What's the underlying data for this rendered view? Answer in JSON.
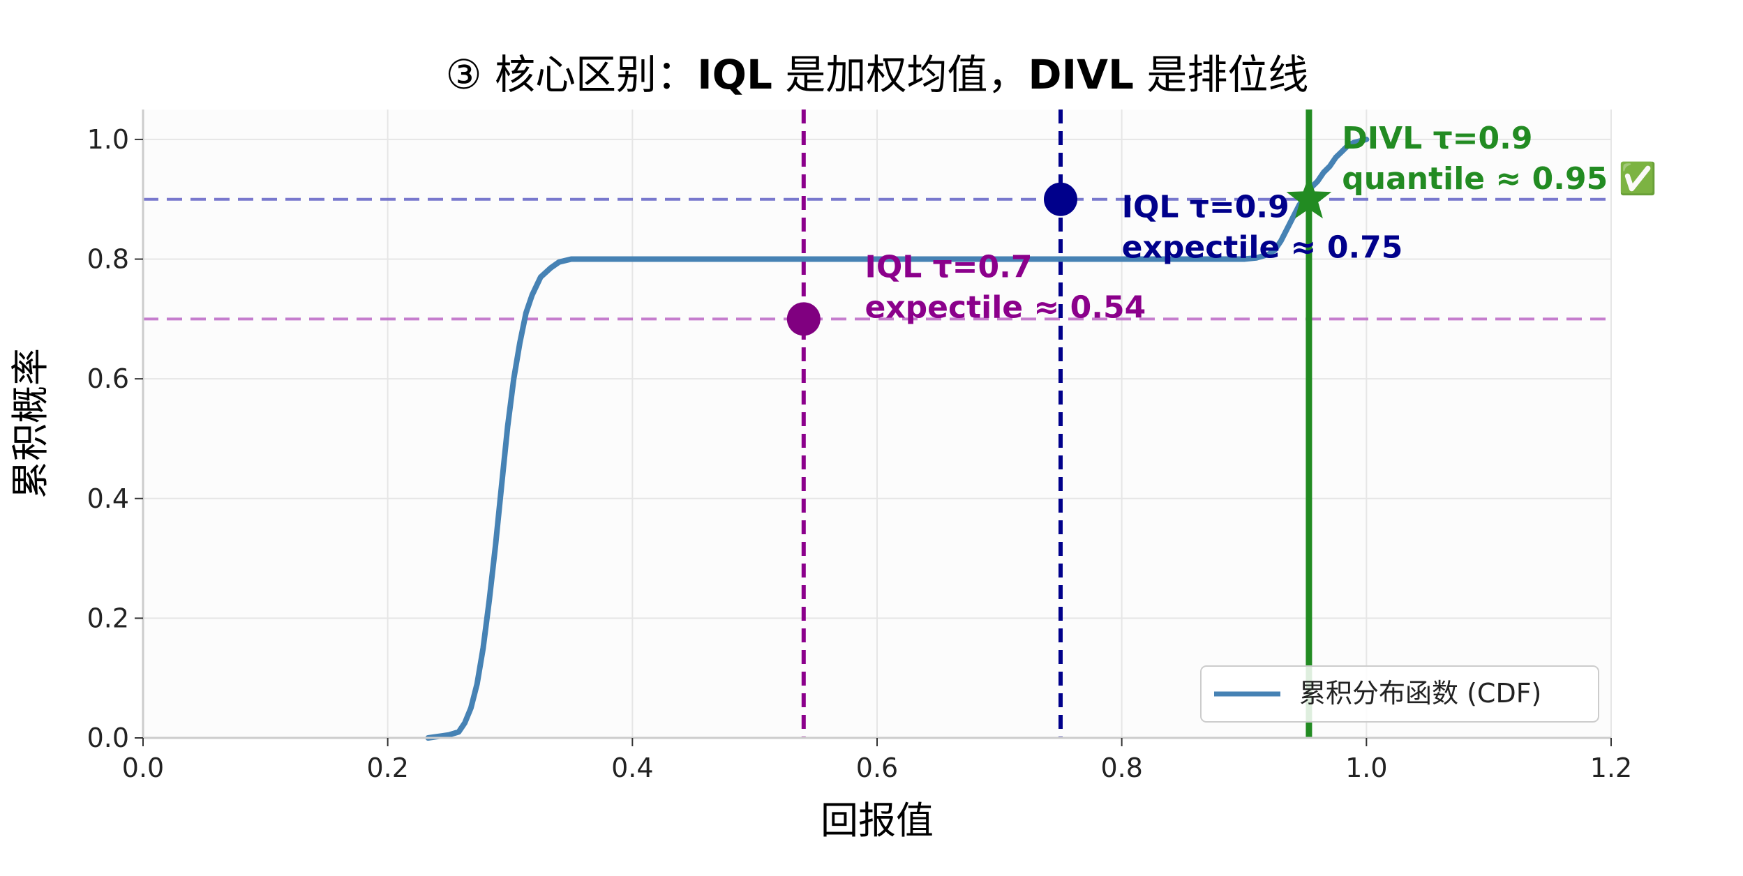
{
  "chart_data": {
    "type": "line",
    "title": "③ 核心区别：IQL 是加权均值，DIVL 是排位线",
    "title_parts": {
      "prefix": "③ 核心区别：",
      "bold1": "IQL",
      "mid": " 是加权均值，",
      "bold2": "DIVL",
      "suffix": " 是排位线"
    },
    "xlabel": "回报值",
    "ylabel": "累积概率",
    "xlim": [
      0.0,
      1.2
    ],
    "ylim": [
      0.0,
      1.05
    ],
    "xticks": [
      0.0,
      0.2,
      0.4,
      0.6,
      0.8,
      1.0,
      1.2
    ],
    "xtick_labels": [
      "0.0",
      "0.2",
      "0.4",
      "0.6",
      "0.8",
      "1.0",
      "1.2"
    ],
    "yticks": [
      0.0,
      0.2,
      0.4,
      0.6,
      0.8,
      1.0
    ],
    "ytick_labels": [
      "0.0",
      "0.2",
      "0.4",
      "0.6",
      "0.8",
      "1.0"
    ],
    "grid": true,
    "legend": {
      "position": "lower-right",
      "entries": [
        "累积分布函数 (CDF)"
      ]
    },
    "series": [
      {
        "name": "累积分布函数 (CDF)",
        "color": "#4682b4",
        "x": [
          0.233,
          0.25,
          0.258,
          0.263,
          0.268,
          0.273,
          0.278,
          0.283,
          0.288,
          0.293,
          0.298,
          0.303,
          0.308,
          0.313,
          0.318,
          0.325,
          0.333,
          0.34,
          0.35,
          0.36,
          0.4,
          0.5,
          0.6,
          0.7,
          0.8,
          0.9,
          0.91,
          0.92,
          0.925,
          0.93,
          0.935,
          0.94,
          0.945,
          0.95,
          0.955,
          0.96,
          0.965,
          0.97,
          0.975,
          0.98,
          0.985,
          0.99,
          1.0
        ],
        "y": [
          0.0,
          0.005,
          0.01,
          0.025,
          0.05,
          0.09,
          0.15,
          0.23,
          0.32,
          0.42,
          0.52,
          0.6,
          0.66,
          0.71,
          0.74,
          0.77,
          0.785,
          0.795,
          0.8,
          0.8,
          0.8,
          0.8,
          0.8,
          0.8,
          0.8,
          0.8,
          0.802,
          0.808,
          0.815,
          0.83,
          0.85,
          0.87,
          0.89,
          0.905,
          0.92,
          0.93,
          0.945,
          0.955,
          0.97,
          0.98,
          0.99,
          0.995,
          1.0
        ]
      }
    ],
    "reference_lines": [
      {
        "axis": "y",
        "value": 0.9,
        "color": "#6a6ac8",
        "style": "dashed"
      },
      {
        "axis": "y",
        "value": 0.7,
        "color": "#c070c8",
        "style": "dashed"
      },
      {
        "axis": "x",
        "value": 0.54,
        "color": "#8b008b",
        "style": "dashed"
      },
      {
        "axis": "x",
        "value": 0.75,
        "color": "#00008b",
        "style": "dashed"
      },
      {
        "axis": "x",
        "value": 0.953,
        "color": "#228b22",
        "style": "solid"
      }
    ],
    "markers": [
      {
        "x": 0.54,
        "y": 0.7,
        "shape": "circle",
        "color": "#800080"
      },
      {
        "x": 0.75,
        "y": 0.9,
        "shape": "circle",
        "color": "#00008b"
      },
      {
        "x": 0.953,
        "y": 0.9,
        "shape": "star",
        "color": "#228b22"
      }
    ],
    "annotations": [
      {
        "lines": [
          "IQL τ=0.7",
          "expectile ≈ 0.54"
        ],
        "color": "#8b008b",
        "x": 0.59,
        "y": 0.77
      },
      {
        "lines": [
          "IQL τ=0.9",
          "expectile ≈ 0.75"
        ],
        "color": "#00008b",
        "x": 0.8,
        "y": 0.87
      },
      {
        "lines": [
          "DIVL τ=0.9",
          "quantile ≈ 0.95 ✅"
        ],
        "color": "#228b22",
        "x": 0.98,
        "y": 0.985
      }
    ]
  }
}
